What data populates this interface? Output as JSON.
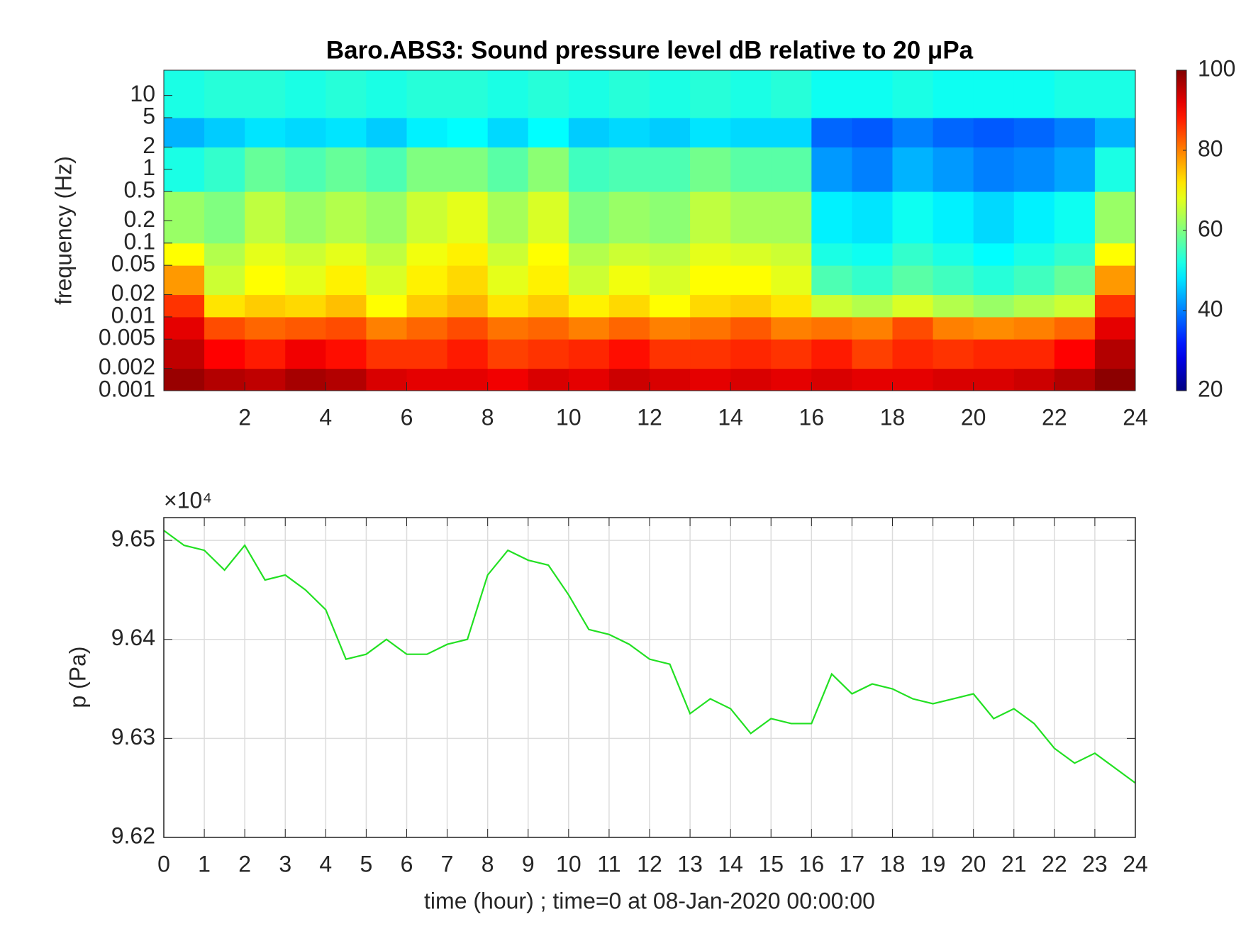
{
  "chart_data": [
    {
      "type": "heatmap",
      "title": "Baro.ABS3: Sound pressure level dB relative to 20 μPa",
      "ylabel": "frequency (Hz)",
      "colormap": "jet",
      "ylog": true,
      "xbins": [
        0,
        1,
        2,
        3,
        4,
        5,
        6,
        7,
        8,
        9,
        10,
        11,
        12,
        13,
        14,
        15,
        16,
        17,
        18,
        19,
        20,
        21,
        22,
        23,
        24
      ],
      "ybins": [
        0.001,
        0.002,
        0.005,
        0.01,
        0.02,
        0.05,
        0.1,
        0.5,
        2,
        5,
        22
      ],
      "z": [
        [
          98,
          96,
          95,
          97,
          96,
          93,
          92,
          92,
          91,
          93,
          92,
          94,
          93,
          92,
          93,
          92,
          93,
          92,
          92,
          93,
          93,
          94,
          96,
          99
        ],
        [
          95,
          90,
          88,
          91,
          89,
          86,
          86,
          88,
          85,
          86,
          87,
          89,
          86,
          86,
          87,
          86,
          88,
          85,
          87,
          86,
          87,
          87,
          90,
          96
        ],
        [
          92,
          84,
          82,
          83,
          84,
          80,
          82,
          84,
          81,
          82,
          80,
          82,
          80,
          81,
          83,
          80,
          81,
          80,
          84,
          80,
          79,
          80,
          82,
          92
        ],
        [
          86,
          72,
          74,
          73,
          75,
          70,
          74,
          76,
          72,
          74,
          71,
          73,
          70,
          73,
          74,
          72,
          66,
          64,
          67,
          64,
          62,
          64,
          66,
          86
        ],
        [
          78,
          66,
          70,
          68,
          71,
          67,
          71,
          73,
          68,
          71,
          66,
          69,
          67,
          70,
          70,
          68,
          56,
          54,
          57,
          55,
          53,
          55,
          58,
          78
        ],
        [
          70,
          64,
          68,
          66,
          68,
          65,
          69,
          71,
          66,
          70,
          64,
          66,
          65,
          68,
          67,
          66,
          52,
          51,
          54,
          52,
          50,
          52,
          54,
          70
        ],
        [
          62,
          60,
          65,
          62,
          64,
          62,
          66,
          68,
          63,
          67,
          60,
          62,
          61,
          65,
          63,
          63,
          49,
          48,
          51,
          49,
          47,
          49,
          51,
          62
        ],
        [
          52,
          54,
          58,
          56,
          58,
          56,
          60,
          60,
          57,
          61,
          55,
          56,
          56,
          59,
          57,
          57,
          42,
          40,
          44,
          42,
          40,
          41,
          43,
          52
        ],
        [
          44,
          46,
          48,
          47,
          48,
          46,
          49,
          50,
          47,
          50,
          46,
          47,
          46,
          48,
          47,
          47,
          38,
          37,
          40,
          38,
          37,
          38,
          40,
          44
        ],
        [
          52,
          53,
          53,
          52,
          53,
          52,
          53,
          53,
          52,
          53,
          52,
          53,
          52,
          53,
          52,
          53,
          51,
          51,
          52,
          51,
          51,
          51,
          52,
          52
        ]
      ],
      "xlim": [
        0,
        24
      ],
      "xticks": [
        2,
        4,
        6,
        8,
        10,
        12,
        14,
        16,
        18,
        20,
        22,
        24
      ],
      "ylim": [
        0.001,
        22
      ],
      "yticks": [
        0.001,
        0.002,
        0.005,
        0.01,
        0.02,
        0.05,
        0.1,
        0.2,
        0.5,
        1,
        2,
        5,
        10
      ],
      "clim": [
        20,
        100
      ],
      "cticks": [
        20,
        40,
        60,
        80,
        100
      ]
    },
    {
      "type": "line",
      "xlabel": "time (hour) ; time=0 at 08-Jan-2020 00:00:00",
      "ylabel": "p (Pa)",
      "y_multiplier": "×10⁴",
      "color": "#22e022",
      "grid": true,
      "x": [
        0,
        0.5,
        1,
        1.5,
        2,
        2.5,
        3,
        3.5,
        4,
        4.5,
        5,
        5.5,
        6,
        6.5,
        7,
        7.5,
        8,
        8.5,
        9,
        9.5,
        10,
        10.5,
        11,
        11.5,
        12,
        12.5,
        13,
        13.5,
        14,
        14.5,
        15,
        15.5,
        16,
        16.5,
        17,
        17.5,
        18,
        18.5,
        19,
        19.5,
        20,
        20.5,
        21,
        21.5,
        22,
        22.5,
        23,
        23.5,
        24
      ],
      "values": [
        9.651,
        9.6495,
        9.649,
        9.647,
        9.6495,
        9.646,
        9.6465,
        9.645,
        9.643,
        9.638,
        9.6385,
        9.64,
        9.6385,
        9.6385,
        9.6395,
        9.64,
        9.6465,
        9.649,
        9.648,
        9.6475,
        9.6445,
        9.641,
        9.6405,
        9.6395,
        9.638,
        9.6375,
        9.6325,
        9.634,
        9.633,
        9.6305,
        9.632,
        9.6315,
        9.6315,
        9.6365,
        9.6345,
        9.6355,
        9.635,
        9.634,
        9.6335,
        9.634,
        9.6345,
        9.632,
        9.633,
        9.6315,
        9.629,
        9.6275,
        9.6285,
        9.627,
        9.6255
      ],
      "xlim": [
        0,
        24
      ],
      "xticks": [
        0,
        1,
        2,
        3,
        4,
        5,
        6,
        7,
        8,
        9,
        10,
        11,
        12,
        13,
        14,
        15,
        16,
        17,
        18,
        19,
        20,
        21,
        22,
        23,
        24
      ],
      "ylim": [
        9.62,
        9.6523
      ],
      "yticks": [
        9.62,
        9.63,
        9.64,
        9.65
      ]
    }
  ]
}
